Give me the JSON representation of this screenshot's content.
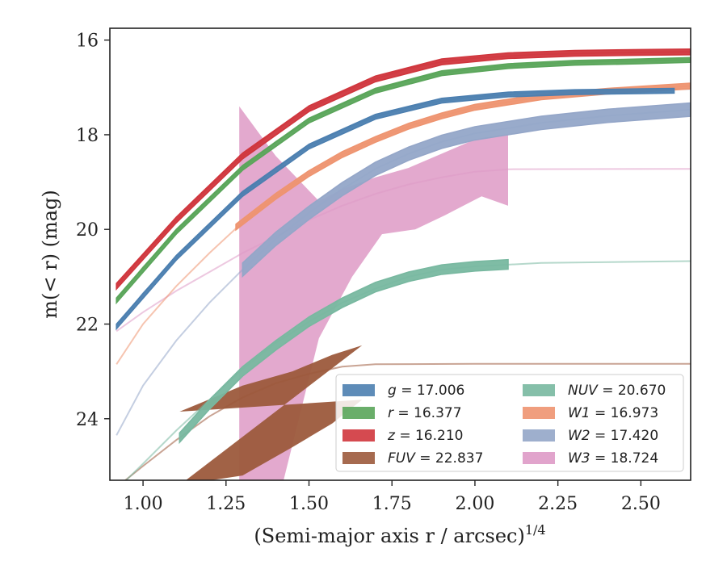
{
  "chart_data": {
    "type": "line",
    "xlabel": "(Semi-major axis r / arcsec)",
    "xlabel_sup": "1/4",
    "ylabel": "m(< r) (mag)",
    "xlim": [
      0.9,
      2.65
    ],
    "ylim": [
      25.3,
      15.75
    ],
    "y_inverted": true,
    "xticks": [
      "1.00",
      "1.25",
      "1.50",
      "1.75",
      "2.00",
      "2.25",
      "2.50"
    ],
    "xtick_values": [
      1.0,
      1.25,
      1.5,
      1.75,
      2.0,
      2.25,
      2.5
    ],
    "yticks": [
      "16",
      "18",
      "20",
      "22",
      "24"
    ],
    "ytick_values": [
      16,
      18,
      20,
      22,
      24
    ],
    "legend_position": "lower-right",
    "series": [
      {
        "name": "g",
        "legend": "g = 17.006",
        "color": "#4c7fb0",
        "band": true,
        "model": [
          [
            0.92,
            22.05
          ],
          [
            1.0,
            21.35
          ],
          [
            1.1,
            20.6
          ],
          [
            1.2,
            19.9
          ],
          [
            1.3,
            19.25
          ],
          [
            1.4,
            18.7
          ],
          [
            1.5,
            18.25
          ],
          [
            1.6,
            17.9
          ],
          [
            1.7,
            17.62
          ],
          [
            1.8,
            17.42
          ],
          [
            1.9,
            17.28
          ],
          [
            2.0,
            17.2
          ],
          [
            2.2,
            17.1
          ],
          [
            2.4,
            17.06
          ],
          [
            2.65,
            17.03
          ]
        ],
        "data": [
          [
            0.92,
            22.05
          ],
          [
            1.1,
            20.6
          ],
          [
            1.3,
            19.25
          ],
          [
            1.5,
            18.25
          ],
          [
            1.7,
            17.62
          ],
          [
            1.9,
            17.28
          ],
          [
            2.1,
            17.15
          ],
          [
            2.3,
            17.1
          ],
          [
            2.5,
            17.08
          ],
          [
            2.6,
            17.07
          ]
        ],
        "band_width": 0.05
      },
      {
        "name": "r",
        "legend": "r = 16.377",
        "color": "#5aa55a",
        "band": true,
        "model": [
          [
            0.92,
            21.5
          ],
          [
            1.0,
            20.8
          ],
          [
            1.1,
            20.05
          ],
          [
            1.2,
            19.35
          ],
          [
            1.3,
            18.7
          ],
          [
            1.4,
            18.15
          ],
          [
            1.5,
            17.7
          ],
          [
            1.6,
            17.35
          ],
          [
            1.7,
            17.07
          ],
          [
            1.8,
            16.85
          ],
          [
            1.9,
            16.7
          ],
          [
            2.0,
            16.6
          ],
          [
            2.2,
            16.5
          ],
          [
            2.4,
            16.45
          ],
          [
            2.65,
            16.42
          ]
        ],
        "data": [
          [
            0.92,
            21.5
          ],
          [
            1.1,
            20.05
          ],
          [
            1.3,
            18.7
          ],
          [
            1.5,
            17.7
          ],
          [
            1.7,
            17.07
          ],
          [
            1.9,
            16.7
          ],
          [
            2.1,
            16.55
          ],
          [
            2.3,
            16.48
          ],
          [
            2.5,
            16.45
          ],
          [
            2.65,
            16.42
          ]
        ],
        "band_width": 0.05
      },
      {
        "name": "z",
        "legend": "z = 16.210",
        "color": "#d0363d",
        "band": true,
        "model": [
          [
            0.92,
            21.2
          ],
          [
            1.0,
            20.55
          ],
          [
            1.1,
            19.8
          ],
          [
            1.2,
            19.1
          ],
          [
            1.3,
            18.45
          ],
          [
            1.4,
            17.9
          ],
          [
            1.5,
            17.45
          ],
          [
            1.6,
            17.1
          ],
          [
            1.7,
            16.82
          ],
          [
            1.8,
            16.6
          ],
          [
            1.9,
            16.46
          ],
          [
            2.0,
            16.38
          ],
          [
            2.2,
            16.3
          ],
          [
            2.4,
            16.27
          ],
          [
            2.65,
            16.25
          ]
        ],
        "data": [
          [
            0.92,
            21.2
          ],
          [
            1.1,
            19.8
          ],
          [
            1.3,
            18.45
          ],
          [
            1.5,
            17.45
          ],
          [
            1.7,
            16.82
          ],
          [
            1.9,
            16.46
          ],
          [
            2.1,
            16.33
          ],
          [
            2.3,
            16.28
          ],
          [
            2.5,
            16.26
          ],
          [
            2.65,
            16.25
          ]
        ],
        "band_width": 0.06
      },
      {
        "name": "FUV",
        "legend": "FUV = 22.837",
        "color": "#9c5a3c",
        "band": true,
        "model": [
          [
            0.92,
            25.45
          ],
          [
            1.0,
            25.0
          ],
          [
            1.1,
            24.45
          ],
          [
            1.2,
            23.95
          ],
          [
            1.3,
            23.55
          ],
          [
            1.4,
            23.25
          ],
          [
            1.5,
            23.05
          ],
          [
            1.6,
            22.9
          ],
          [
            1.7,
            22.85
          ],
          [
            2.0,
            22.84
          ],
          [
            2.65,
            22.84
          ]
        ],
        "band_upper": [
          [
            1.11,
            23.85
          ],
          [
            1.3,
            23.3
          ],
          [
            1.45,
            23.0
          ],
          [
            1.57,
            22.65
          ],
          [
            1.66,
            22.45
          ]
        ],
        "band_lower": [
          [
            1.11,
            25.4
          ],
          [
            1.3,
            25.2
          ],
          [
            1.45,
            24.6
          ],
          [
            1.57,
            24.1
          ],
          [
            1.66,
            23.6
          ]
        ]
      },
      {
        "name": "NUV",
        "legend": "NUV = 20.670",
        "color": "#78b8a0",
        "band": true,
        "model": [
          [
            0.92,
            25.5
          ],
          [
            1.0,
            24.95
          ],
          [
            1.1,
            24.25
          ],
          [
            1.2,
            23.6
          ],
          [
            1.3,
            22.95
          ],
          [
            1.4,
            22.4
          ],
          [
            1.5,
            21.95
          ],
          [
            1.6,
            21.55
          ],
          [
            1.7,
            21.25
          ],
          [
            1.8,
            21.0
          ],
          [
            1.9,
            20.85
          ],
          [
            2.0,
            20.78
          ],
          [
            2.2,
            20.71
          ],
          [
            2.4,
            20.69
          ],
          [
            2.65,
            20.67
          ]
        ],
        "data": [
          [
            1.11,
            24.4
          ],
          [
            1.2,
            23.7
          ],
          [
            1.3,
            23.0
          ],
          [
            1.4,
            22.45
          ],
          [
            1.5,
            21.95
          ],
          [
            1.6,
            21.55
          ],
          [
            1.7,
            21.22
          ],
          [
            1.8,
            21.0
          ],
          [
            1.9,
            20.85
          ],
          [
            2.0,
            20.78
          ],
          [
            2.1,
            20.74
          ]
        ],
        "band_width": 0.1
      },
      {
        "name": "W1",
        "legend": "W1 = 16.973",
        "color": "#ee9470",
        "band": true,
        "model": [
          [
            0.92,
            22.85
          ],
          [
            1.0,
            22.0
          ],
          [
            1.1,
            21.2
          ],
          [
            1.2,
            20.5
          ],
          [
            1.3,
            19.85
          ],
          [
            1.4,
            19.3
          ],
          [
            1.5,
            18.82
          ],
          [
            1.6,
            18.42
          ],
          [
            1.7,
            18.1
          ],
          [
            1.8,
            17.82
          ],
          [
            1.9,
            17.6
          ],
          [
            2.0,
            17.42
          ],
          [
            2.2,
            17.2
          ],
          [
            2.4,
            17.08
          ],
          [
            2.65,
            16.97
          ]
        ],
        "data": [
          [
            1.28,
            19.95
          ],
          [
            1.4,
            19.3
          ],
          [
            1.5,
            18.82
          ],
          [
            1.6,
            18.42
          ],
          [
            1.7,
            18.1
          ],
          [
            1.8,
            17.82
          ],
          [
            1.9,
            17.6
          ],
          [
            2.0,
            17.42
          ],
          [
            2.2,
            17.2
          ],
          [
            2.4,
            17.08
          ],
          [
            2.65,
            16.97
          ]
        ],
        "band_width": 0.06
      },
      {
        "name": "W2",
        "legend": "W2 = 17.420",
        "color": "#94a6c8",
        "band": true,
        "model": [
          [
            0.92,
            24.35
          ],
          [
            1.0,
            23.3
          ],
          [
            1.1,
            22.35
          ],
          [
            1.2,
            21.55
          ],
          [
            1.3,
            20.85
          ],
          [
            1.4,
            20.2
          ],
          [
            1.5,
            19.65
          ],
          [
            1.6,
            19.15
          ],
          [
            1.7,
            18.72
          ],
          [
            1.8,
            18.4
          ],
          [
            1.9,
            18.15
          ],
          [
            2.0,
            17.97
          ],
          [
            2.2,
            17.75
          ],
          [
            2.4,
            17.6
          ],
          [
            2.65,
            17.47
          ]
        ],
        "data": [
          [
            1.3,
            20.85
          ],
          [
            1.4,
            20.2
          ],
          [
            1.5,
            19.65
          ],
          [
            1.6,
            19.15
          ],
          [
            1.7,
            18.72
          ],
          [
            1.8,
            18.4
          ],
          [
            1.9,
            18.15
          ],
          [
            2.0,
            17.97
          ],
          [
            2.2,
            17.75
          ],
          [
            2.4,
            17.6
          ],
          [
            2.65,
            17.47
          ]
        ],
        "band_width": 0.14
      },
      {
        "name": "W3",
        "legend": "W3 = 18.724",
        "color": "#de9ac6",
        "band": true,
        "model": [
          [
            0.92,
            22.15
          ],
          [
            1.0,
            21.75
          ],
          [
            1.1,
            21.3
          ],
          [
            1.2,
            20.9
          ],
          [
            1.3,
            20.5
          ],
          [
            1.4,
            20.15
          ],
          [
            1.5,
            19.8
          ],
          [
            1.6,
            19.5
          ],
          [
            1.7,
            19.25
          ],
          [
            1.8,
            19.05
          ],
          [
            1.9,
            18.9
          ],
          [
            2.0,
            18.78
          ],
          [
            2.1,
            18.73
          ],
          [
            2.65,
            18.72
          ]
        ],
        "band_upper": [
          [
            1.29,
            17.4
          ],
          [
            1.4,
            18.45
          ],
          [
            1.53,
            19.4
          ],
          [
            1.6,
            19.15
          ],
          [
            1.7,
            18.9
          ],
          [
            1.8,
            18.7
          ],
          [
            1.9,
            18.4
          ],
          [
            2.0,
            18.1
          ],
          [
            2.1,
            18.0
          ]
        ],
        "band_lower": [
          [
            2.1,
            19.5
          ],
          [
            2.02,
            19.3
          ],
          [
            1.91,
            19.7
          ],
          [
            1.82,
            20.0
          ],
          [
            1.72,
            20.1
          ],
          [
            1.63,
            21.0
          ],
          [
            1.53,
            22.3
          ],
          [
            1.42,
            25.4
          ],
          [
            1.29,
            25.4
          ]
        ]
      }
    ]
  }
}
